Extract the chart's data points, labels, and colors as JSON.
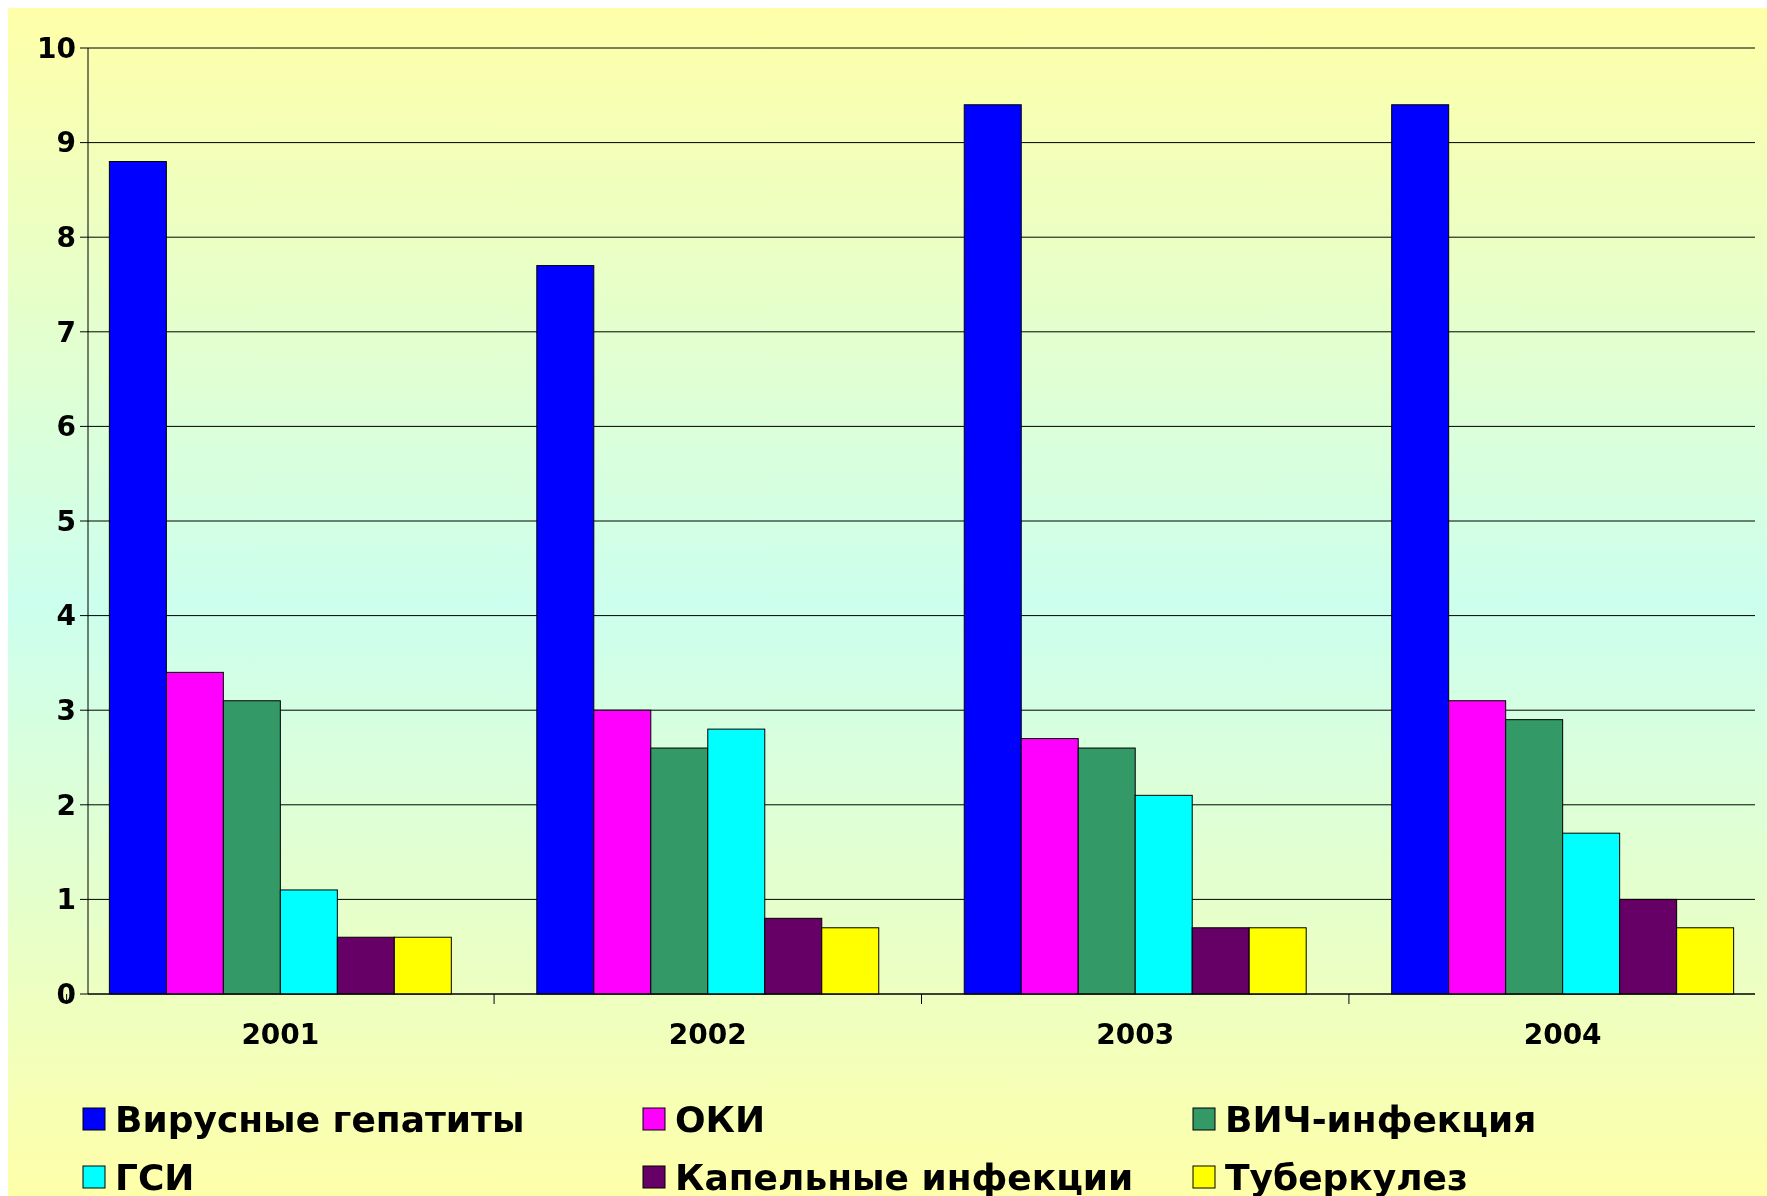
{
  "chart_data": {
    "type": "bar",
    "categories": [
      "2001",
      "2002",
      "2003",
      "2004"
    ],
    "series": [
      {
        "name": "Вирусные гепатиты",
        "color": "#0000ff",
        "values": [
          8.8,
          7.7,
          9.4,
          9.4
        ]
      },
      {
        "name": "ОКИ",
        "color": "#ff00ff",
        "values": [
          3.4,
          3.0,
          2.7,
          3.1
        ]
      },
      {
        "name": "ВИЧ-инфекция",
        "color": "#339966",
        "values": [
          3.1,
          2.6,
          2.6,
          2.9
        ]
      },
      {
        "name": "ГСИ",
        "color": "#00ffff",
        "values": [
          1.1,
          2.8,
          2.1,
          1.7
        ]
      },
      {
        "name": "Капельные инфекции",
        "color": "#660066",
        "values": [
          0.6,
          0.8,
          0.7,
          1.0
        ]
      },
      {
        "name": "Туберкулез",
        "color": "#ffff00",
        "values": [
          0.6,
          0.7,
          0.7,
          0.7
        ]
      }
    ],
    "ylim": [
      0,
      10
    ],
    "yticks": [
      0,
      1,
      2,
      3,
      4,
      5,
      6,
      7,
      8,
      9,
      10
    ],
    "grid": "y",
    "legend": "bottom"
  }
}
